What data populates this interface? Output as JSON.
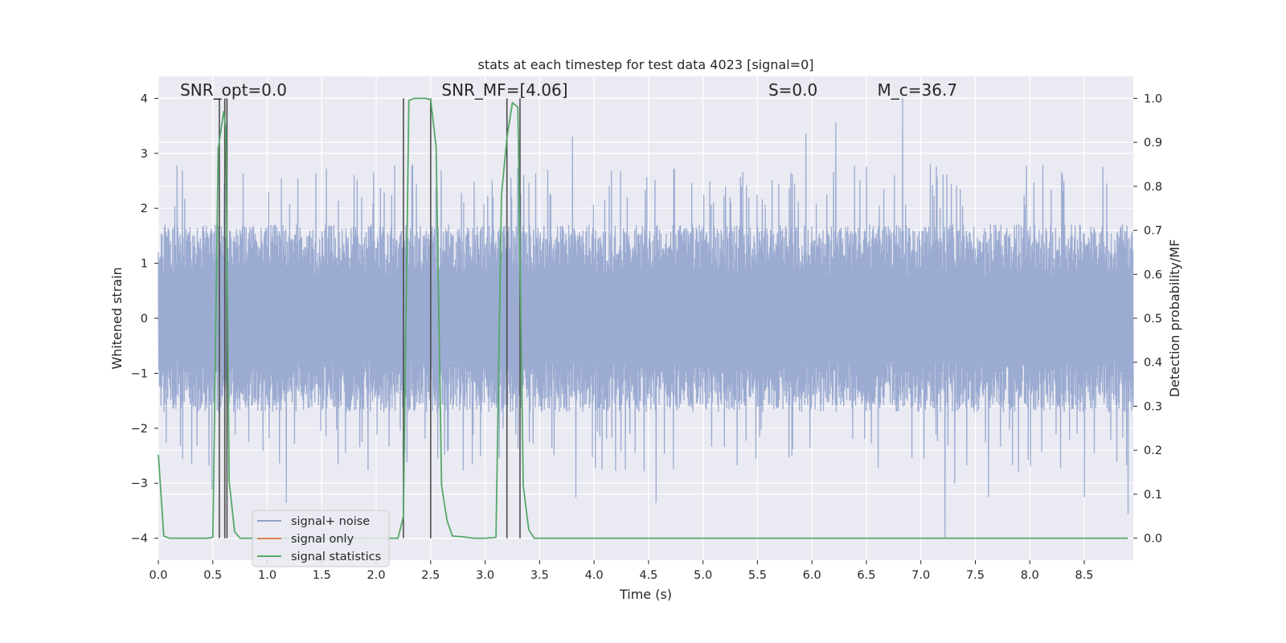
{
  "chart_data": {
    "type": "line",
    "title": "stats at each timestep for test data 4023 [signal=0]",
    "xlabel": "Time (s)",
    "ylabel_left": "Whitened strain",
    "ylabel_right": "Detection probability/MF",
    "xlim": [
      0.0,
      8.95
    ],
    "ylim_left": [
      -4.4,
      4.4
    ],
    "ylim_right": [
      -0.05,
      1.05
    ],
    "x_ticks": [
      0.0,
      0.5,
      1.0,
      1.5,
      2.0,
      2.5,
      3.0,
      3.5,
      4.0,
      4.5,
      5.0,
      5.5,
      6.0,
      6.5,
      7.0,
      7.5,
      8.0,
      8.5
    ],
    "x_tick_labels": [
      "0.0",
      "0.5",
      "1.0",
      "1.5",
      "2.0",
      "2.5",
      "3.0",
      "3.5",
      "4.0",
      "4.5",
      "5.0",
      "5.5",
      "6.0",
      "6.5",
      "7.0",
      "7.5",
      "8.0",
      "8.5"
    ],
    "y_left_ticks": [
      -4,
      -3,
      -2,
      -1,
      0,
      1,
      2,
      3,
      4
    ],
    "y_left_tick_labels": [
      "−4",
      "−3",
      "−2",
      "−1",
      "0",
      "1",
      "2",
      "3",
      "4"
    ],
    "y_right_ticks": [
      0.0,
      0.1,
      0.2,
      0.3,
      0.4,
      0.5,
      0.6,
      0.7,
      0.8,
      0.9,
      1.0
    ],
    "y_right_tick_labels": [
      "0.0",
      "0.1",
      "0.2",
      "0.3",
      "0.4",
      "0.5",
      "0.6",
      "0.7",
      "0.8",
      "0.9",
      "1.0"
    ],
    "grid": true,
    "legend_position": "lower-left",
    "annotations": [
      {
        "text": "SNR_opt=0.0",
        "x": 0.2,
        "y": 4.05
      },
      {
        "text": "SNR_MF=[4.06]",
        "x": 2.6,
        "y": 4.05
      },
      {
        "text": "S=0.0",
        "x": 5.6,
        "y": 4.05
      },
      {
        "text": "M_c=36.7",
        "x": 6.6,
        "y": 4.05
      }
    ],
    "vertical_markers_x": [
      0.56,
      0.61,
      0.63,
      2.25,
      2.5,
      3.2,
      3.32
    ],
    "vertical_markers_range": [
      -4.0,
      4.0
    ],
    "series": [
      {
        "name": "signal+ noise",
        "axis": "left",
        "color": "#8da0cb",
        "description_stats": {
          "dense_min": -1.7,
          "dense_max": 1.7
        },
        "peaks": [
          {
            "x": 0.49,
            "y": -3.1
          },
          {
            "x": 1.17,
            "y": -3.35
          },
          {
            "x": 2.88,
            "y": -2.65
          },
          {
            "x": 3.8,
            "y": 3.3
          },
          {
            "x": 3.83,
            "y": -3.25
          },
          {
            "x": 4.57,
            "y": -3.35
          },
          {
            "x": 5.94,
            "y": 3.35
          },
          {
            "x": 6.22,
            "y": 3.55
          },
          {
            "x": 6.83,
            "y": 4.0
          },
          {
            "x": 7.22,
            "y": -4.0
          },
          {
            "x": 7.31,
            "y": -3.0
          },
          {
            "x": 7.62,
            "y": -3.25
          },
          {
            "x": 8.5,
            "y": -3.25
          },
          {
            "x": 8.9,
            "y": -3.55
          }
        ]
      },
      {
        "name": "signal only",
        "axis": "left",
        "color": "#dd8452",
        "x": [
          0.0,
          8.95
        ],
        "y": [
          0.0,
          0.0
        ]
      },
      {
        "name": "signal statistics",
        "axis": "right",
        "color": "#55a868",
        "x": [
          0.0,
          0.05,
          0.1,
          0.15,
          0.2,
          0.25,
          0.3,
          0.35,
          0.4,
          0.45,
          0.5,
          0.55,
          0.6,
          0.62,
          0.65,
          0.7,
          0.75,
          0.8,
          0.85,
          0.9,
          0.95,
          1.0,
          1.1,
          1.2,
          1.3,
          1.4,
          1.5,
          1.6,
          1.7,
          1.8,
          1.9,
          2.0,
          2.1,
          2.2,
          2.25,
          2.3,
          2.35,
          2.4,
          2.45,
          2.5,
          2.55,
          2.6,
          2.65,
          2.7,
          2.8,
          2.9,
          3.0,
          3.1,
          3.15,
          3.2,
          3.25,
          3.3,
          3.35,
          3.4,
          3.45,
          3.5,
          3.6,
          4.0,
          5.0,
          6.0,
          7.0,
          8.0,
          8.9
        ],
        "y": [
          0.19,
          0.005,
          0.0,
          0.0,
          0.0,
          0.0,
          0.0,
          0.0,
          0.0,
          0.0,
          0.002,
          0.885,
          0.97,
          0.93,
          0.13,
          0.015,
          0.0,
          0.0,
          0.0,
          0.0,
          0.0,
          0.0,
          0.0,
          0.0,
          0.0,
          0.0,
          0.0,
          0.0,
          0.0,
          0.0,
          0.0,
          0.0,
          0.0,
          0.0,
          0.05,
          0.995,
          1.0,
          1.0,
          1.0,
          0.997,
          0.89,
          0.12,
          0.04,
          0.005,
          0.003,
          0.0,
          0.0,
          0.002,
          0.78,
          0.91,
          0.99,
          0.98,
          0.12,
          0.02,
          0.0,
          0.0,
          0.0,
          0.0,
          0.0,
          0.0,
          0.0,
          0.0,
          0.0
        ]
      }
    ]
  }
}
